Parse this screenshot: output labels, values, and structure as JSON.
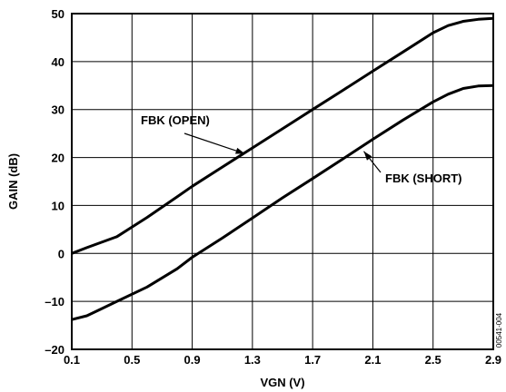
{
  "chart_data": {
    "type": "line",
    "xlabel": "VGN (V)",
    "ylabel": "GAIN (dB)",
    "xlim": [
      0.1,
      2.9
    ],
    "ylim": [
      -20,
      50
    ],
    "x_ticks": [
      "0.1",
      "0.5",
      "0.9",
      "1.3",
      "1.7",
      "2.1",
      "2.5",
      "2.9"
    ],
    "y_ticks": [
      "–20",
      "–10",
      "0",
      "10",
      "20",
      "30",
      "40",
      "50"
    ],
    "grid": true,
    "series": [
      {
        "name": "FBK (OPEN)",
        "points": [
          [
            0.1,
            0.0
          ],
          [
            0.2,
            1.2
          ],
          [
            0.4,
            3.5
          ],
          [
            0.6,
            7.5
          ],
          [
            0.8,
            11.8
          ],
          [
            0.9,
            14.0
          ],
          [
            1.1,
            18.0
          ],
          [
            1.3,
            22.0
          ],
          [
            1.5,
            26.0
          ],
          [
            1.7,
            30.0
          ],
          [
            1.9,
            34.0
          ],
          [
            2.1,
            38.0
          ],
          [
            2.3,
            42.0
          ],
          [
            2.5,
            46.0
          ],
          [
            2.6,
            47.5
          ],
          [
            2.7,
            48.4
          ],
          [
            2.8,
            48.8
          ],
          [
            2.9,
            49.0
          ]
        ]
      },
      {
        "name": "FBK (SHORT)",
        "points": [
          [
            0.1,
            -13.8
          ],
          [
            0.2,
            -13.0
          ],
          [
            0.3,
            -11.5
          ],
          [
            0.4,
            -10.0
          ],
          [
            0.6,
            -7.0
          ],
          [
            0.8,
            -3.2
          ],
          [
            0.9,
            -0.8
          ],
          [
            1.1,
            3.2
          ],
          [
            1.3,
            7.4
          ],
          [
            1.5,
            11.6
          ],
          [
            1.7,
            15.6
          ],
          [
            1.9,
            19.7
          ],
          [
            2.1,
            23.8
          ],
          [
            2.3,
            27.8
          ],
          [
            2.5,
            31.6
          ],
          [
            2.6,
            33.2
          ],
          [
            2.7,
            34.4
          ],
          [
            2.8,
            34.9
          ],
          [
            2.9,
            35.0
          ]
        ]
      }
    ],
    "annotations": [
      {
        "text": "FBK (OPEN)",
        "series": 0,
        "x": 1.25,
        "y": 20.8
      },
      {
        "text": "FBK (SHORT)",
        "series": 1,
        "x": 2.04,
        "y": 21.3
      }
    ],
    "figure_id": "00541-004"
  }
}
